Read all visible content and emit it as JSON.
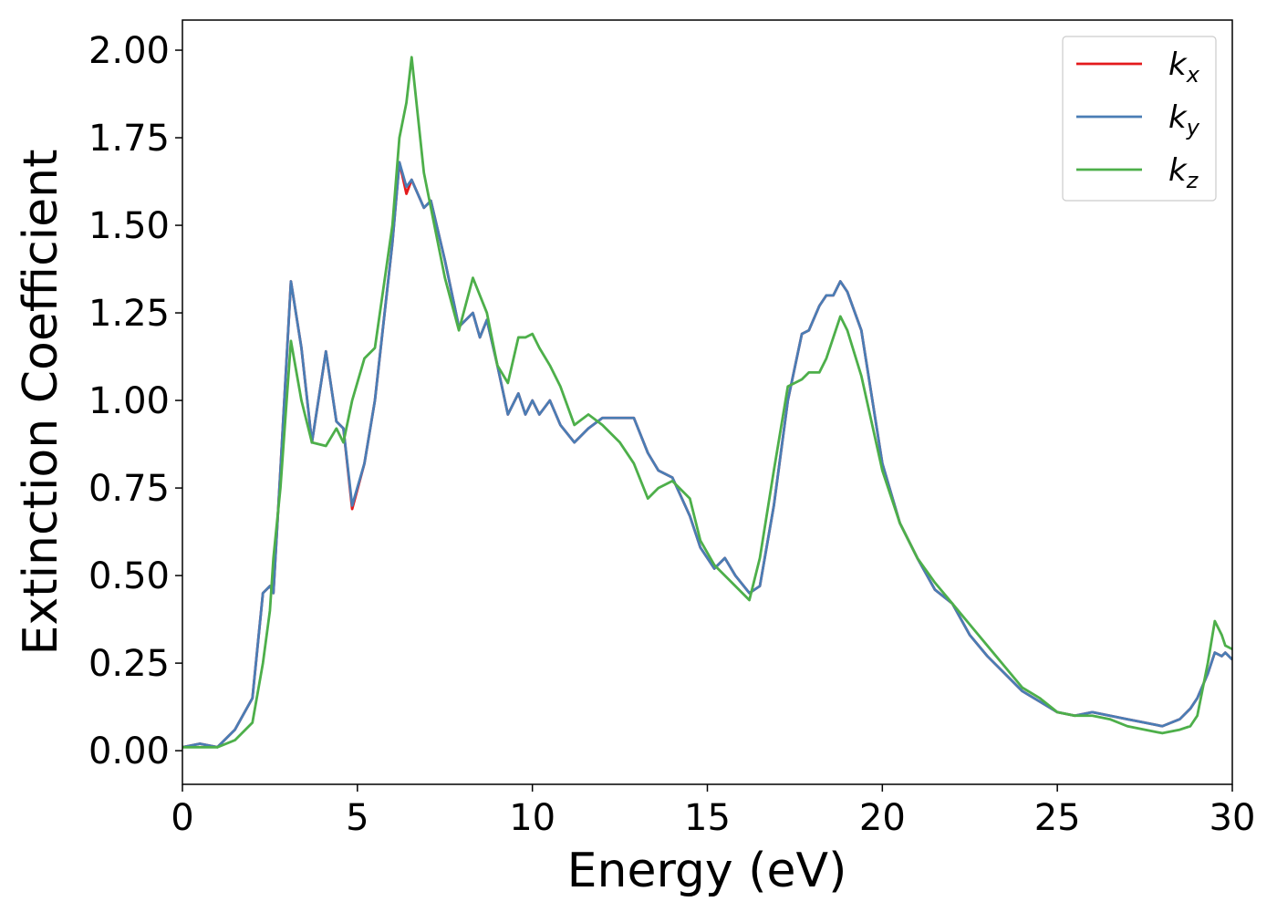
{
  "chart_data": {
    "type": "line",
    "x_label": "Energy (eV)",
    "y_label": "Extinction Coefficient",
    "x": [
      0,
      0.5,
      1,
      1.5,
      2,
      2.3,
      2.5,
      2.6,
      2.8,
      3.1,
      3.4,
      3.7,
      4.1,
      4.4,
      4.6,
      4.85,
      5.2,
      5.5,
      6,
      6.2,
      6.4,
      6.55,
      6.9,
      7.1,
      7.5,
      7.9,
      8.3,
      8.5,
      8.7,
      9,
      9.3,
      9.6,
      9.8,
      10,
      10.2,
      10.5,
      10.8,
      11.2,
      11.6,
      12,
      12.5,
      12.9,
      13.3,
      13.6,
      14,
      14.5,
      14.8,
      15.2,
      15.5,
      15.8,
      16.2,
      16.5,
      16.9,
      17.3,
      17.7,
      17.9,
      18.2,
      18.4,
      18.6,
      18.8,
      19,
      19.4,
      20,
      20.5,
      21,
      21.5,
      22,
      22.5,
      23,
      23.5,
      24,
      24.5,
      25,
      25.5,
      26,
      26.5,
      27,
      27.5,
      28,
      28.5,
      28.8,
      29,
      29.3,
      29.5,
      29.7,
      29.8,
      30
    ],
    "series": [
      {
        "name": "kx",
        "color": "#e41a1c",
        "values": [
          0.01,
          0.02,
          0.01,
          0.06,
          0.15,
          0.45,
          0.47,
          0.45,
          0.8,
          1.34,
          1.15,
          0.88,
          1.14,
          0.94,
          0.92,
          0.69,
          0.82,
          1.0,
          1.45,
          1.68,
          1.59,
          1.63,
          1.55,
          1.57,
          1.4,
          1.21,
          1.25,
          1.18,
          1.23,
          1.1,
          0.96,
          1.02,
          0.96,
          1.0,
          0.96,
          1.0,
          0.93,
          0.88,
          0.92,
          0.95,
          0.95,
          0.95,
          0.85,
          0.8,
          0.78,
          0.67,
          0.58,
          0.52,
          0.55,
          0.5,
          0.45,
          0.47,
          0.7,
          1.0,
          1.19,
          1.2,
          1.27,
          1.3,
          1.3,
          1.34,
          1.31,
          1.2,
          0.82,
          0.65,
          0.55,
          0.46,
          0.42,
          0.33,
          0.27,
          0.22,
          0.17,
          0.14,
          0.11,
          0.1,
          0.11,
          0.1,
          0.09,
          0.08,
          0.07,
          0.09,
          0.12,
          0.15,
          0.22,
          0.28,
          0.27,
          0.28,
          0.26
        ]
      },
      {
        "name": "ky",
        "color": "#4a7db5",
        "values": [
          0.01,
          0.02,
          0.01,
          0.06,
          0.15,
          0.45,
          0.47,
          0.45,
          0.8,
          1.34,
          1.15,
          0.88,
          1.14,
          0.94,
          0.92,
          0.7,
          0.82,
          1.0,
          1.45,
          1.68,
          1.61,
          1.63,
          1.55,
          1.57,
          1.4,
          1.21,
          1.25,
          1.18,
          1.23,
          1.1,
          0.96,
          1.02,
          0.96,
          1.0,
          0.96,
          1.0,
          0.93,
          0.88,
          0.92,
          0.95,
          0.95,
          0.95,
          0.85,
          0.8,
          0.78,
          0.67,
          0.58,
          0.52,
          0.55,
          0.5,
          0.45,
          0.47,
          0.7,
          1.0,
          1.19,
          1.2,
          1.27,
          1.3,
          1.3,
          1.34,
          1.31,
          1.2,
          0.82,
          0.65,
          0.55,
          0.46,
          0.42,
          0.33,
          0.27,
          0.22,
          0.17,
          0.14,
          0.11,
          0.1,
          0.11,
          0.1,
          0.09,
          0.08,
          0.07,
          0.09,
          0.12,
          0.15,
          0.22,
          0.28,
          0.27,
          0.28,
          0.26
        ]
      },
      {
        "name": "kz",
        "color": "#4daf4a",
        "values": [
          0.01,
          0.01,
          0.01,
          0.03,
          0.08,
          0.25,
          0.4,
          0.55,
          0.75,
          1.17,
          1.0,
          0.88,
          0.87,
          0.92,
          0.88,
          1.0,
          1.12,
          1.15,
          1.5,
          1.75,
          1.85,
          1.98,
          1.65,
          1.55,
          1.35,
          1.2,
          1.35,
          1.3,
          1.25,
          1.1,
          1.05,
          1.18,
          1.18,
          1.19,
          1.15,
          1.1,
          1.04,
          0.93,
          0.96,
          0.93,
          0.88,
          0.82,
          0.72,
          0.75,
          0.77,
          0.72,
          0.6,
          0.53,
          0.5,
          0.47,
          0.43,
          0.55,
          0.8,
          1.04,
          1.06,
          1.08,
          1.08,
          1.12,
          1.18,
          1.24,
          1.2,
          1.07,
          0.8,
          0.65,
          0.55,
          0.48,
          0.42,
          0.36,
          0.3,
          0.24,
          0.18,
          0.15,
          0.11,
          0.1,
          0.1,
          0.09,
          0.07,
          0.06,
          0.05,
          0.06,
          0.07,
          0.1,
          0.25,
          0.37,
          0.33,
          0.3,
          0.29
        ]
      }
    ],
    "xlim": [
      0,
      30
    ],
    "xticks": [
      0,
      5,
      10,
      15,
      20,
      25,
      30
    ],
    "ylim": [
      -0.096,
      2.086
    ],
    "yticks": [
      {
        "value": 0,
        "label": "0.00"
      },
      {
        "value": 0.25,
        "label": "0.25"
      },
      {
        "value": 0.5,
        "label": "0.50"
      },
      {
        "value": 0.75,
        "label": "0.75"
      },
      {
        "value": 1,
        "label": "1.00"
      },
      {
        "value": 1.25,
        "label": "1.25"
      },
      {
        "value": 1.5,
        "label": "1.50"
      },
      {
        "value": 1.75,
        "label": "1.75"
      },
      {
        "value": 2,
        "label": "2.00"
      }
    ],
    "grid": false,
    "legend": "upper right"
  }
}
